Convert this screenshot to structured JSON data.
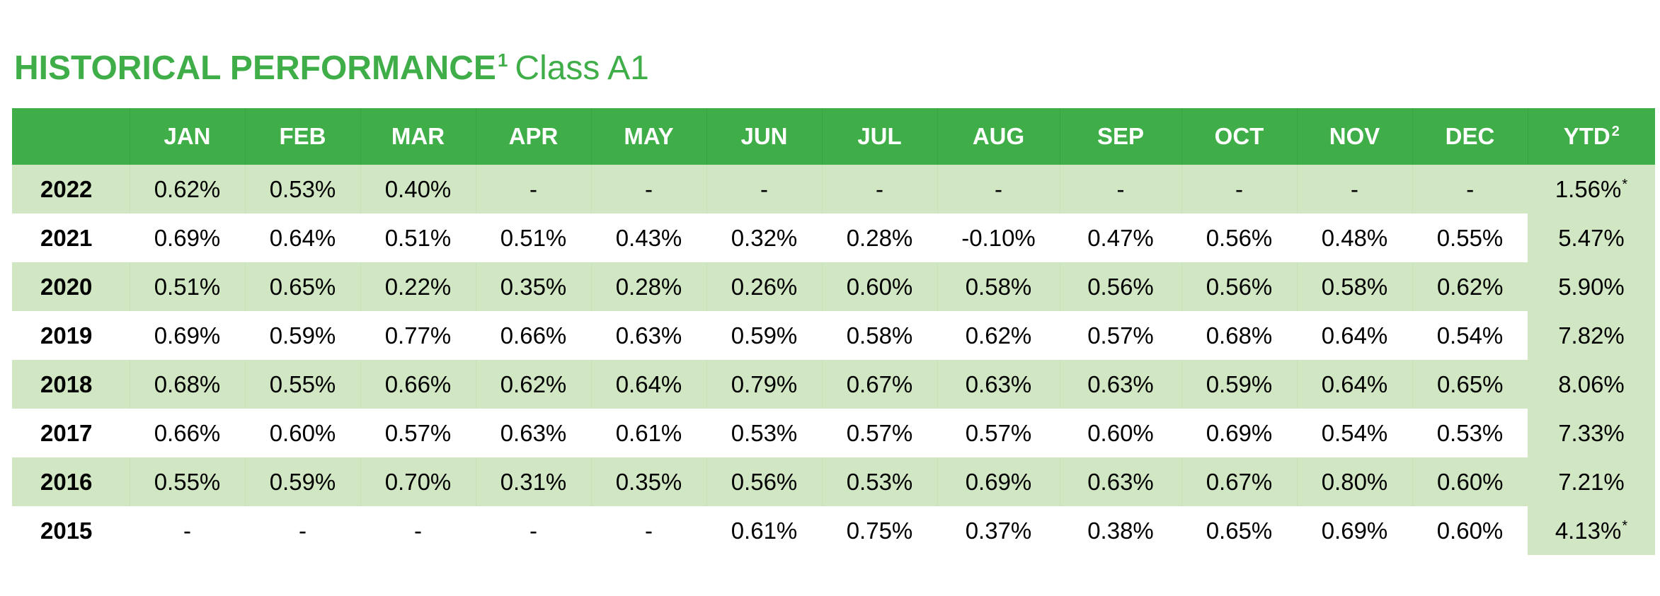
{
  "title": {
    "main": "HISTORICAL PERFORMANCE",
    "superscript": "1",
    "subtitle": "Class A1"
  },
  "colors": {
    "brand_green": "#3fae49",
    "shade_green": "#d1e7c3"
  },
  "table": {
    "columns": [
      "",
      "JAN",
      "FEB",
      "MAR",
      "APR",
      "MAY",
      "JUN",
      "JUL",
      "AUG",
      "SEP",
      "OCT",
      "NOV",
      "DEC"
    ],
    "ytd_header": "YTD",
    "ytd_header_superscript": "2",
    "rows": [
      {
        "year": "2022",
        "values": [
          "0.62%",
          "0.53%",
          "0.40%",
          "-",
          "-",
          "-",
          "-",
          "-",
          "-",
          "-",
          "-",
          "-"
        ],
        "ytd": "1.56%",
        "ytd_mark": "*"
      },
      {
        "year": "2021",
        "values": [
          "0.69%",
          "0.64%",
          "0.51%",
          "0.51%",
          "0.43%",
          "0.32%",
          "0.28%",
          "-0.10%",
          "0.47%",
          "0.56%",
          "0.48%",
          "0.55%"
        ],
        "ytd": "5.47%",
        "ytd_mark": ""
      },
      {
        "year": "2020",
        "values": [
          "0.51%",
          "0.65%",
          "0.22%",
          "0.35%",
          "0.28%",
          "0.26%",
          "0.60%",
          "0.58%",
          "0.56%",
          "0.56%",
          "0.58%",
          "0.62%"
        ],
        "ytd": "5.90%",
        "ytd_mark": ""
      },
      {
        "year": "2019",
        "values": [
          "0.69%",
          "0.59%",
          "0.77%",
          "0.66%",
          "0.63%",
          "0.59%",
          "0.58%",
          "0.62%",
          "0.57%",
          "0.68%",
          "0.64%",
          "0.54%"
        ],
        "ytd": "7.82%",
        "ytd_mark": ""
      },
      {
        "year": "2018",
        "values": [
          "0.68%",
          "0.55%",
          "0.66%",
          "0.62%",
          "0.64%",
          "0.79%",
          "0.67%",
          "0.63%",
          "0.63%",
          "0.59%",
          "0.64%",
          "0.65%"
        ],
        "ytd": "8.06%",
        "ytd_mark": ""
      },
      {
        "year": "2017",
        "values": [
          "0.66%",
          "0.60%",
          "0.57%",
          "0.63%",
          "0.61%",
          "0.53%",
          "0.57%",
          "0.57%",
          "0.60%",
          "0.69%",
          "0.54%",
          "0.53%"
        ],
        "ytd": "7.33%",
        "ytd_mark": ""
      },
      {
        "year": "2016",
        "values": [
          "0.55%",
          "0.59%",
          "0.70%",
          "0.31%",
          "0.35%",
          "0.56%",
          "0.53%",
          "0.69%",
          "0.63%",
          "0.67%",
          "0.80%",
          "0.60%"
        ],
        "ytd": "7.21%",
        "ytd_mark": ""
      },
      {
        "year": "2015",
        "values": [
          "-",
          "-",
          "-",
          "-",
          "-",
          "0.61%",
          "0.75%",
          "0.37%",
          "0.38%",
          "0.65%",
          "0.69%",
          "0.60%"
        ],
        "ytd": "4.13%",
        "ytd_mark": "*"
      }
    ]
  }
}
